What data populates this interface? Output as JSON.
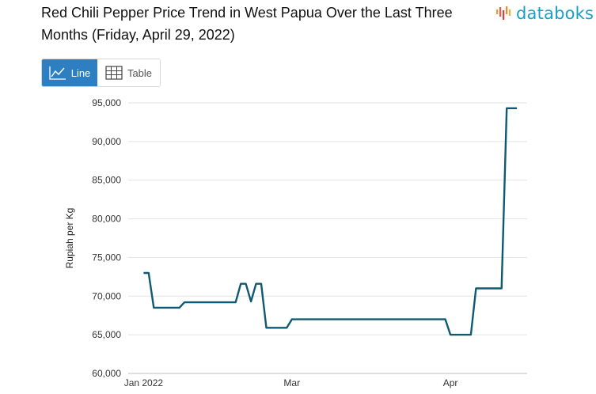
{
  "header": {
    "title": "Red Chili Pepper Price Trend in West Papua Over the Last Three Months (Friday, April 29, 2022)",
    "logo_text": "databoks",
    "logo_color": "#19a0c4"
  },
  "toggle": {
    "line_label": "Line",
    "table_label": "Table",
    "active": "Line",
    "active_color": "#2d7fc1"
  },
  "chart_data": {
    "type": "line",
    "ylabel": "Rupiah per Kg",
    "xlabel": "",
    "ylim": [
      60000,
      95000
    ],
    "y_ticks": [
      60000,
      65000,
      70000,
      75000,
      80000,
      85000,
      90000,
      95000
    ],
    "y_tick_labels": [
      "60,000",
      "65,000",
      "70,000",
      "75,000",
      "80,000",
      "85,000",
      "90,000",
      "95,000"
    ],
    "x_tick_labels": [
      {
        "date": "2022-01-31",
        "label": "Jan 2022"
      },
      {
        "date": "2022-03-01",
        "label": "Mar"
      },
      {
        "date": "2022-04-01",
        "label": "Apr"
      }
    ],
    "grid": true,
    "line_color": "#0e5a72",
    "series": [
      {
        "points": [
          {
            "x": "2022-01-31",
            "y": 73000
          },
          {
            "x": "2022-02-01",
            "y": 73000
          },
          {
            "x": "2022-02-02",
            "y": 68500
          },
          {
            "x": "2022-02-07",
            "y": 68500
          },
          {
            "x": "2022-02-08",
            "y": 69200
          },
          {
            "x": "2022-02-18",
            "y": 69200
          },
          {
            "x": "2022-02-19",
            "y": 71600
          },
          {
            "x": "2022-02-20",
            "y": 71600
          },
          {
            "x": "2022-02-21",
            "y": 69300
          },
          {
            "x": "2022-02-22",
            "y": 71600
          },
          {
            "x": "2022-02-23",
            "y": 71600
          },
          {
            "x": "2022-02-24",
            "y": 65900
          },
          {
            "x": "2022-02-28",
            "y": 65900
          },
          {
            "x": "2022-03-01",
            "y": 67000
          },
          {
            "x": "2022-03-31",
            "y": 67000
          },
          {
            "x": "2022-04-01",
            "y": 65000
          },
          {
            "x": "2022-04-05",
            "y": 65000
          },
          {
            "x": "2022-04-06",
            "y": 71000
          },
          {
            "x": "2022-04-11",
            "y": 71000
          },
          {
            "x": "2022-04-12",
            "y": 94300
          },
          {
            "x": "2022-04-14",
            "y": 94300
          }
        ]
      }
    ]
  }
}
